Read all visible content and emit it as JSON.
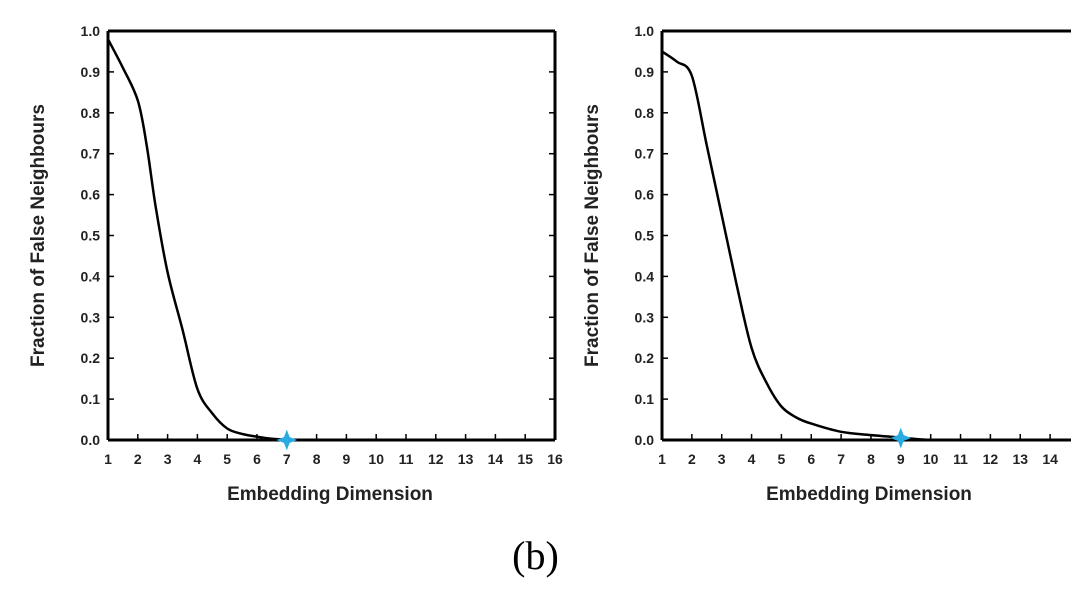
{
  "colors": {
    "line": "#000000",
    "marker": "#29abe2",
    "text": "#222222",
    "frame": "#000000"
  },
  "caption": "(b)",
  "chart_data": [
    {
      "type": "line",
      "title": "",
      "xlabel": "Embedding Dimension",
      "ylabel": "Fraction of False Neighbours",
      "xlim": [
        1,
        16
      ],
      "ylim": [
        0,
        1
      ],
      "xticks": [
        1,
        2,
        3,
        4,
        5,
        6,
        7,
        8,
        9,
        10,
        11,
        12,
        13,
        14,
        15,
        16
      ],
      "xtick_labels": [
        "1",
        "2",
        "3",
        "4",
        "5",
        "6",
        "7",
        "8",
        "9",
        "10",
        "11",
        "12",
        "13",
        "14",
        "15",
        "16"
      ],
      "yticks": [
        0,
        0.1,
        0.2,
        0.3,
        0.4,
        0.5,
        0.6,
        0.7,
        0.8,
        0.9,
        1.0
      ],
      "ytick_labels": [
        "0.0",
        "0.1",
        "0.2",
        "0.3",
        "0.4",
        "0.5",
        "0.6",
        "0.7",
        "0.8",
        "0.9",
        "1.0"
      ],
      "grid": false,
      "series": [
        {
          "name": "false-neighbours",
          "x": [
            1,
            1.5,
            2,
            2.3,
            2.6,
            3,
            3.5,
            4,
            4.5,
            5,
            5.5,
            6,
            6.5,
            7,
            8,
            10,
            12,
            14,
            16
          ],
          "y": [
            0.98,
            0.91,
            0.83,
            0.72,
            0.57,
            0.41,
            0.27,
            0.125,
            0.065,
            0.028,
            0.015,
            0.008,
            0.003,
            0.001,
            0.0,
            0.0,
            0.0,
            0.0,
            0.0
          ]
        }
      ],
      "marker": {
        "x": 7,
        "y": 0.0,
        "shape": "star"
      }
    },
    {
      "type": "line",
      "title": "",
      "xlabel": "Embedding Dimension",
      "ylabel": "Fraction of False Neighbours",
      "xlim": [
        1,
        14.7
      ],
      "ylim": [
        0,
        1
      ],
      "xticks": [
        1,
        2,
        3,
        4,
        5,
        6,
        7,
        8,
        9,
        10,
        11,
        12,
        13,
        14
      ],
      "xtick_labels": [
        "1",
        "2",
        "3",
        "4",
        "5",
        "6",
        "7",
        "8",
        "9",
        "10",
        "11",
        "12",
        "13",
        "14"
      ],
      "yticks": [
        0,
        0.1,
        0.2,
        0.3,
        0.4,
        0.5,
        0.6,
        0.7,
        0.8,
        0.9,
        1.0
      ],
      "ytick_labels": [
        "0.0",
        "0.1",
        "0.2",
        "0.3",
        "0.4",
        "0.5",
        "0.6",
        "0.7",
        "0.8",
        "0.9",
        "1.0"
      ],
      "grid": false,
      "series": [
        {
          "name": "false-neighbours",
          "x": [
            1,
            1.5,
            2,
            2.5,
            3,
            3.5,
            4,
            4.5,
            5,
            5.5,
            6,
            7,
            8,
            9,
            10,
            12,
            14.7
          ],
          "y": [
            0.95,
            0.925,
            0.89,
            0.72,
            0.55,
            0.38,
            0.225,
            0.14,
            0.082,
            0.055,
            0.04,
            0.02,
            0.012,
            0.006,
            0.0,
            0.0,
            0.0
          ]
        }
      ],
      "marker": {
        "x": 9,
        "y": 0.005,
        "shape": "star"
      }
    }
  ]
}
